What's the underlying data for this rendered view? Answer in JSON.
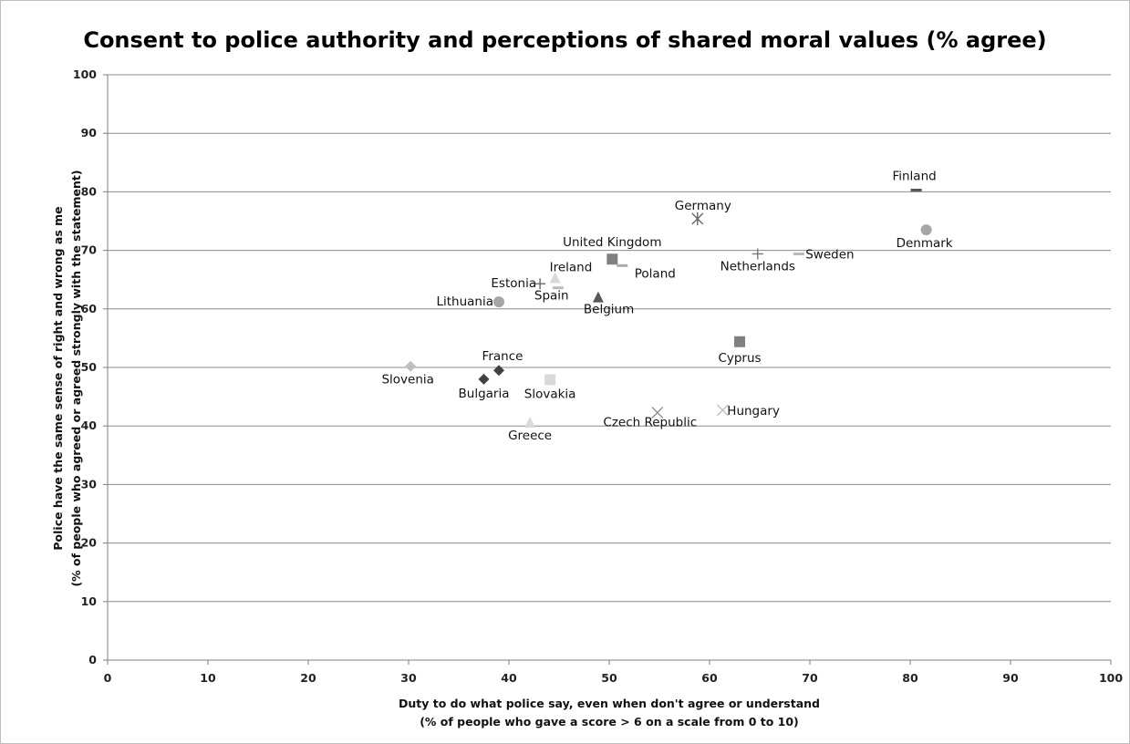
{
  "chart_data": {
    "type": "scatter",
    "title": "Consent to police authority and perceptions of shared moral values (% agree)",
    "xlabel": [
      "Duty to do what police say, even when don't agree or understand",
      "(% of people who gave a score > 6 on a scale from 0 to 10)"
    ],
    "ylabel": [
      "Police have the same sense of right and wrong as me",
      "(% of people who agreed or agreed strongly with the statement)"
    ],
    "xlim": [
      0,
      100
    ],
    "ylim": [
      0,
      100
    ],
    "xticks": [
      0,
      10,
      20,
      30,
      40,
      50,
      60,
      70,
      80,
      90,
      100
    ],
    "yticks": [
      0,
      10,
      20,
      30,
      40,
      50,
      60,
      70,
      80,
      90,
      100
    ],
    "grid": "horizontal",
    "points": [
      {
        "label": "Finland",
        "x": 80.6,
        "y": 80.3,
        "marker": "dash",
        "color": "#555555"
      },
      {
        "label": "Denmark",
        "x": 81.6,
        "y": 73.5,
        "marker": "circle",
        "color": "#a6a6a6"
      },
      {
        "label": "Germany",
        "x": 58.8,
        "y": 75.4,
        "marker": "asterisk",
        "color": "#666666"
      },
      {
        "label": "Netherlands",
        "x": 64.8,
        "y": 69.4,
        "marker": "plus",
        "color": "#777777"
      },
      {
        "label": "Sweden",
        "x": 68.9,
        "y": 69.4,
        "marker": "dash",
        "color": "#bbbbbb"
      },
      {
        "label": "United Kingdom",
        "x": 50.3,
        "y": 68.5,
        "marker": "square",
        "color": "#808080"
      },
      {
        "label": "Poland",
        "x": 51.3,
        "y": 67.4,
        "marker": "dash",
        "color": "#aaaaaa"
      },
      {
        "label": "Ireland",
        "x": 44.6,
        "y": 65.2,
        "marker": "triangle",
        "color": "#d9d9d9"
      },
      {
        "label": "Estonia",
        "x": 43.1,
        "y": 64.3,
        "marker": "plus",
        "color": "#666666"
      },
      {
        "label": "Spain",
        "x": 44.9,
        "y": 63.6,
        "marker": "dash",
        "color": "#bbbbbb"
      },
      {
        "label": "Lithuania",
        "x": 39.0,
        "y": 61.2,
        "marker": "circle",
        "color": "#a6a6a6"
      },
      {
        "label": "Belgium",
        "x": 48.9,
        "y": 61.9,
        "marker": "triangle",
        "color": "#595959"
      },
      {
        "label": "Cyprus",
        "x": 63.0,
        "y": 54.4,
        "marker": "square",
        "color": "#808080"
      },
      {
        "label": "Slovenia",
        "x": 30.2,
        "y": 50.2,
        "marker": "diamond",
        "color": "#bfbfbf"
      },
      {
        "label": "France",
        "x": 39.0,
        "y": 49.5,
        "marker": "diamond",
        "color": "#404040"
      },
      {
        "label": "Bulgaria",
        "x": 37.5,
        "y": 48.0,
        "marker": "diamond",
        "color": "#404040"
      },
      {
        "label": "Slovakia",
        "x": 44.1,
        "y": 47.9,
        "marker": "square",
        "color": "#d9d9d9"
      },
      {
        "label": "Czech Republic",
        "x": 54.8,
        "y": 42.3,
        "marker": "x",
        "color": "#8c8c8c"
      },
      {
        "label": "Hungary",
        "x": 61.3,
        "y": 42.7,
        "marker": "x",
        "color": "#bfbfbf"
      },
      {
        "label": "Greece",
        "x": 42.1,
        "y": 40.5,
        "marker": "triangle",
        "color": "#d9d9d9"
      }
    ]
  }
}
